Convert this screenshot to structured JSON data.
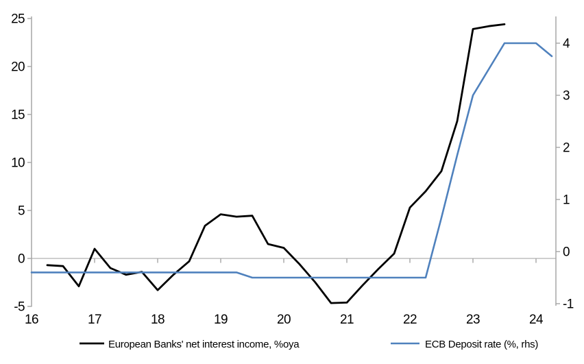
{
  "chart_data": {
    "type": "line",
    "title": "",
    "grid": "zero-line-only",
    "legend_position": "bottom",
    "x_axis": {
      "tick_labels": [
        "16",
        "17",
        "18",
        "19",
        "20",
        "21",
        "22",
        "23",
        "24"
      ],
      "tick_values": [
        16,
        17,
        18,
        19,
        20,
        21,
        22,
        23,
        24
      ],
      "range": [
        16,
        24.3
      ]
    },
    "left_axis": {
      "tick_labels": [
        "-5",
        "0",
        "5",
        "10",
        "15",
        "20",
        "25"
      ],
      "tick_values": [
        -5,
        0,
        5,
        10,
        15,
        20,
        25
      ],
      "range": [
        -5,
        25
      ]
    },
    "right_axis": {
      "tick_labels": [
        "-1",
        "0",
        "1",
        "2",
        "3",
        "4"
      ],
      "tick_values": [
        -1,
        0,
        1,
        2,
        3,
        4
      ],
      "range": [
        -1,
        4.5
      ]
    },
    "series": [
      {
        "name": "European Banks' net interest income, %oya",
        "axis": "left",
        "color": "#000000",
        "x": [
          16.25,
          16.5,
          16.75,
          17.0,
          17.25,
          17.5,
          17.75,
          18.0,
          18.25,
          18.5,
          18.75,
          19.0,
          19.25,
          19.5,
          19.75,
          20.0,
          20.25,
          20.5,
          20.75,
          21.0,
          21.25,
          21.5,
          21.75,
          22.0,
          22.25,
          22.5,
          22.75,
          23.0,
          23.25,
          23.5
        ],
        "values": [
          -0.7,
          -0.8,
          -2.9,
          1.0,
          -1.0,
          -1.7,
          -1.4,
          -3.3,
          -1.7,
          -0.3,
          3.4,
          4.6,
          4.35,
          4.45,
          1.5,
          1.1,
          -0.6,
          -2.5,
          -4.65,
          -4.6,
          -2.8,
          -1.1,
          0.5,
          5.3,
          7.0,
          9.1,
          14.3,
          23.9,
          24.2,
          24.4
        ]
      },
      {
        "name": "ECB Deposit rate (%, rhs)",
        "axis": "right",
        "color": "#4f81bd",
        "x": [
          16.0,
          16.25,
          16.5,
          16.75,
          17.0,
          17.25,
          17.5,
          17.75,
          18.0,
          18.25,
          18.5,
          18.75,
          19.0,
          19.25,
          19.5,
          19.75,
          20.0,
          20.25,
          20.5,
          20.75,
          21.0,
          21.25,
          21.5,
          21.75,
          22.0,
          22.25,
          22.5,
          22.75,
          23.0,
          23.25,
          23.5,
          23.75,
          24.0,
          24.25
        ],
        "values": [
          -0.4,
          -0.4,
          -0.4,
          -0.4,
          -0.4,
          -0.4,
          -0.4,
          -0.4,
          -0.4,
          -0.4,
          -0.4,
          -0.4,
          -0.4,
          -0.4,
          -0.5,
          -0.5,
          -0.5,
          -0.5,
          -0.5,
          -0.5,
          -0.5,
          -0.5,
          -0.5,
          -0.5,
          -0.5,
          -0.5,
          0.65,
          1.85,
          3.0,
          3.5,
          4.0,
          4.0,
          4.0,
          3.75
        ]
      }
    ]
  },
  "colors": {
    "background": "#ffffff",
    "axis_line": "#a6a6a6",
    "zero_gridline": "#bfbfbf",
    "label_text": "#000000"
  }
}
